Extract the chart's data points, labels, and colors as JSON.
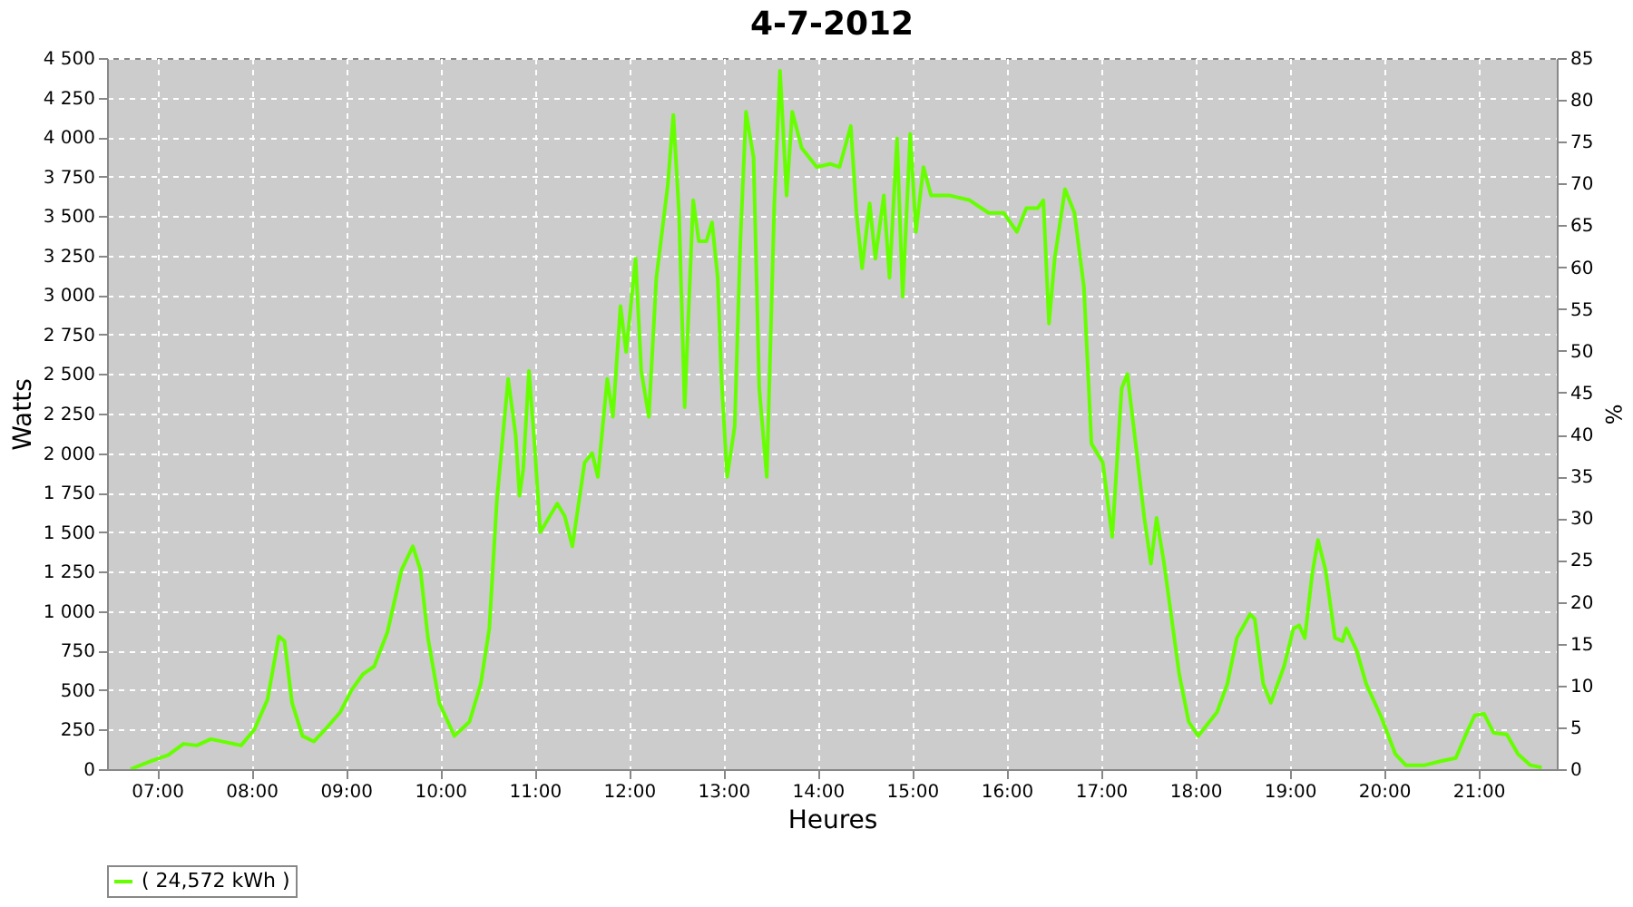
{
  "chart_data": {
    "type": "line",
    "title": "4-7-2012",
    "xlabel": "Heures",
    "ylabel": "Watts",
    "y2label": "%",
    "x": [
      6.72,
      6.93,
      7.12,
      7.28,
      7.42,
      7.57,
      7.73,
      7.89,
      8.03,
      8.17,
      8.29,
      8.35,
      8.43,
      8.54,
      8.66,
      8.78,
      8.94,
      9.06,
      9.18,
      9.3,
      9.44,
      9.59,
      9.71,
      9.79,
      9.87,
      9.99,
      10.15,
      10.31,
      10.43,
      10.52,
      10.6,
      10.72,
      10.8,
      10.84,
      10.88,
      10.94,
      11.0,
      11.06,
      11.16,
      11.24,
      11.32,
      11.4,
      11.53,
      11.61,
      11.67,
      11.77,
      11.83,
      11.91,
      11.97,
      12.07,
      12.13,
      12.21,
      12.29,
      12.41,
      12.47,
      12.53,
      12.59,
      12.68,
      12.74,
      12.82,
      12.88,
      12.94,
      12.98,
      13.04,
      13.12,
      13.18,
      13.24,
      13.32,
      13.38,
      13.46,
      13.54,
      13.6,
      13.67,
      13.73,
      13.83,
      13.99,
      14.13,
      14.23,
      14.35,
      14.41,
      14.47,
      14.55,
      14.61,
      14.7,
      14.76,
      14.84,
      14.9,
      14.98,
      15.04,
      15.12,
      15.2,
      15.4,
      15.61,
      15.81,
      15.97,
      16.11,
      16.21,
      16.33,
      16.39,
      16.45,
      16.51,
      16.62,
      16.72,
      16.82,
      16.9,
      17.02,
      17.12,
      17.22,
      17.28,
      17.38,
      17.46,
      17.53,
      17.59,
      17.67,
      17.75,
      17.83,
      17.93,
      18.03,
      18.15,
      18.23,
      18.34,
      18.44,
      18.58,
      18.63,
      18.72,
      18.8,
      18.94,
      19.04,
      19.1,
      19.16,
      19.24,
      19.3,
      19.38,
      19.48,
      19.56,
      19.6,
      19.71,
      19.81,
      19.97,
      20.12,
      20.23,
      20.43,
      20.6,
      20.76,
      20.86,
      20.96,
      21.06,
      21.16,
      21.3,
      21.42,
      21.55,
      21.67
    ],
    "series": [
      {
        "name": "( 24,572 kWh )",
        "color": "#66ff00",
        "values": [
          0,
          50,
          90,
          160,
          150,
          190,
          170,
          150,
          250,
          440,
          840,
          810,
          420,
          210,
          175,
          250,
          360,
          500,
          600,
          650,
          865,
          1260,
          1410,
          1260,
          830,
          420,
          210,
          300,
          540,
          890,
          1700,
          2470,
          2110,
          1730,
          1900,
          2520,
          2050,
          1500,
          1600,
          1680,
          1600,
          1410,
          1940,
          2000,
          1850,
          2470,
          2230,
          2930,
          2640,
          3230,
          2520,
          2230,
          3110,
          3690,
          4140,
          3520,
          2290,
          3600,
          3340,
          3340,
          3460,
          3110,
          2470,
          1850,
          2170,
          3340,
          4160,
          3870,
          2410,
          1850,
          3580,
          4420,
          3630,
          4160,
          3930,
          3810,
          3830,
          3810,
          4070,
          3520,
          3170,
          3580,
          3230,
          3630,
          3110,
          3990,
          2990,
          4020,
          3400,
          3810,
          3630,
          3630,
          3600,
          3520,
          3520,
          3400,
          3550,
          3550,
          3600,
          2820,
          3230,
          3670,
          3520,
          3050,
          2060,
          1940,
          1470,
          2410,
          2500,
          2000,
          1590,
          1300,
          1590,
          1300,
          950,
          600,
          300,
          210,
          300,
          360,
          540,
          830,
          980,
          950,
          540,
          420,
          650,
          890,
          910,
          830,
          1240,
          1450,
          1260,
          830,
          810,
          890,
          750,
          540,
          330,
          95,
          25,
          25,
          50,
          70,
          210,
          340,
          350,
          230,
          220,
          95,
          25,
          10
        ]
      }
    ],
    "xlim": [
      6.47,
      21.83
    ],
    "xticks": [
      {
        "value": 7,
        "label": "07:00"
      },
      {
        "value": 8,
        "label": "08:00"
      },
      {
        "value": 9,
        "label": "09:00"
      },
      {
        "value": 10,
        "label": "10:00"
      },
      {
        "value": 11,
        "label": "11:00"
      },
      {
        "value": 12,
        "label": "12:00"
      },
      {
        "value": 13,
        "label": "13:00"
      },
      {
        "value": 14,
        "label": "14:00"
      },
      {
        "value": 15,
        "label": "15:00"
      },
      {
        "value": 16,
        "label": "16:00"
      },
      {
        "value": 17,
        "label": "17:00"
      },
      {
        "value": 18,
        "label": "18:00"
      },
      {
        "value": 19,
        "label": "19:00"
      },
      {
        "value": 20,
        "label": "20:00"
      },
      {
        "value": 21,
        "label": "21:00"
      }
    ],
    "ylim": [
      0,
      4500
    ],
    "yticks": [
      0,
      250,
      500,
      750,
      {
        "value": 1000,
        "label": "1 000"
      },
      {
        "value": 1250,
        "label": "1 250"
      },
      {
        "value": 1500,
        "label": "1 500"
      },
      {
        "value": 1750,
        "label": "1 750"
      },
      {
        "value": 2000,
        "label": "2 000"
      },
      {
        "value": 2250,
        "label": "2 250"
      },
      {
        "value": 2500,
        "label": "2 500"
      },
      {
        "value": 2750,
        "label": "2 750"
      },
      {
        "value": 3000,
        "label": "3 000"
      },
      {
        "value": 3250,
        "label": "3 250"
      },
      {
        "value": 3500,
        "label": "3 500"
      },
      {
        "value": 3750,
        "label": "3 750"
      },
      {
        "value": 4000,
        "label": "4 000"
      },
      {
        "value": 4250,
        "label": "4 250"
      },
      {
        "value": 4500,
        "label": "4 500"
      }
    ],
    "y2lim": [
      0,
      85
    ],
    "y2ticks": [
      0,
      5,
      10,
      15,
      20,
      25,
      30,
      35,
      40,
      45,
      50,
      55,
      60,
      65,
      70,
      75,
      80,
      85
    ],
    "grid": true,
    "legend": "bottom"
  }
}
